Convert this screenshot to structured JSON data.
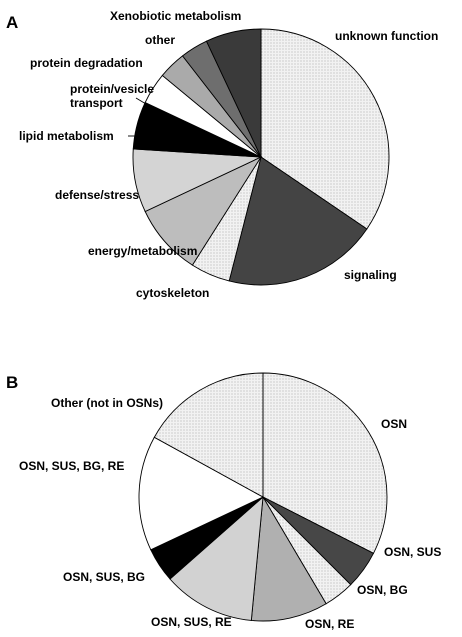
{
  "chart_data": [
    {
      "type": "pie",
      "panel": "A",
      "title": "",
      "slices": [
        {
          "label": "unknown function",
          "value": 34.5,
          "color": "#e6e6e6"
        },
        {
          "label": "signaling",
          "value": 19.5,
          "color": "#444444"
        },
        {
          "label": "cytoskeleton",
          "value": 5.0,
          "color": "#dcdcdc"
        },
        {
          "label": "energy/metabolism",
          "value": 9.0,
          "color": "#bdbdbd"
        },
        {
          "label": "defense/stress",
          "value": 8.0,
          "color": "#d4d4d4"
        },
        {
          "label": "lipid metabolism",
          "value": 6.0,
          "color": "#000000"
        },
        {
          "label": [
            "protein/vesicle",
            "transport"
          ],
          "value": 4.0,
          "color": "#ffffff"
        },
        {
          "label": "protein degradation",
          "value": 3.5,
          "color": "#aaaaaa"
        },
        {
          "label": "other",
          "value": 3.5,
          "color": "#6e6e6e"
        },
        {
          "label": "Xenobiotic metabolism",
          "value": 7.0,
          "color": "#3a3a3a"
        }
      ]
    },
    {
      "type": "pie",
      "panel": "B",
      "title": "",
      "slices": [
        {
          "label": "OSN",
          "value": 32.5,
          "color": "#e8e8e8"
        },
        {
          "label": "OSN, SUS",
          "value": 5.0,
          "color": "#474747"
        },
        {
          "label": "OSN, BG",
          "value": 4.0,
          "color": "#cfcfcf"
        },
        {
          "label": "OSN, RE",
          "value": 10.0,
          "color": "#b0b0b0"
        },
        {
          "label": "OSN, SUS, RE",
          "value": 12.0,
          "color": "#d2d2d2"
        },
        {
          "label": "OSN, SUS, BG",
          "value": 4.5,
          "color": "#000000"
        },
        {
          "label": "OSN, SUS, BG, RE",
          "value": 15.0,
          "color": "#ffffff"
        },
        {
          "label": "Other (not in OSNs)",
          "value": 17.0,
          "color": "#999999"
        }
      ]
    }
  ]
}
